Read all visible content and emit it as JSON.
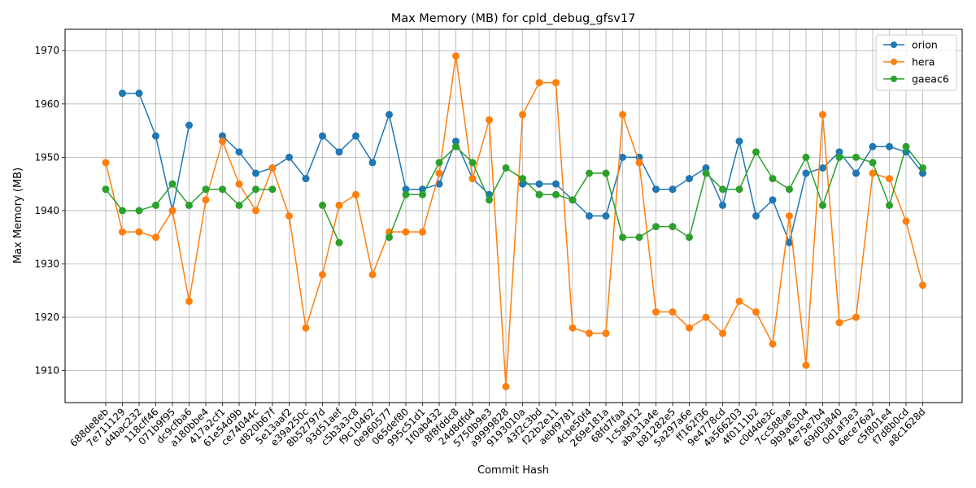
{
  "chart_data": {
    "type": "line",
    "title": "Max Memory (MB) for cpld_debug_gfsv17",
    "xlabel": "Commit Hash",
    "ylabel": "Max Memory (MB)",
    "ylim": [
      1904,
      1974
    ],
    "yticks": [
      1910,
      1920,
      1930,
      1940,
      1950,
      1960,
      1970
    ],
    "grid": true,
    "legend_position": "top-right",
    "categories": [
      "688de8eb",
      "7e711129",
      "d4bac232",
      "118cff46",
      "071b9f95",
      "dc9cfba6",
      "a180bbe4",
      "417a2cf1",
      "61e54d9b",
      "ce74044c",
      "d820b67f",
      "5e13aaf2",
      "e39a250c",
      "8b52797d",
      "93d51aef",
      "c5b3a3c8",
      "f9c10462",
      "0e960577",
      "065def80",
      "995c51d1",
      "1f0ab432",
      "8f8fddc8",
      "24d8dfd4",
      "5750b9e3",
      "a9999828",
      "9193010a",
      "43f2c3bd",
      "f22b2e11",
      "aebf9781",
      "4cbe50f4",
      "269e181a",
      "68fd7faa",
      "1c5a9f12",
      "aba31a4e",
      "b81282e5",
      "5a297a6e",
      "ff162f36",
      "9e4778cd",
      "4a566203",
      "4f0111b2",
      "c0d4de3c",
      "7cc588ae",
      "9b9a6304",
      "4e75e7b4",
      "69d03840",
      "0d1af3e3",
      "6ece76a2",
      "c5f801e4",
      "f7d8b0cd",
      "a8c1628d"
    ],
    "series": [
      {
        "name": "orion",
        "color": "#1f77b4",
        "values": [
          null,
          1962,
          1962,
          1954,
          1940,
          1956,
          null,
          1954,
          1951,
          1947,
          1948,
          1950,
          1946,
          1954,
          1951,
          1954,
          1949,
          1958,
          1944,
          1944,
          1945,
          1953,
          1946,
          1943,
          null,
          1945,
          1945,
          1945,
          1942,
          1939,
          1939,
          1950,
          1950,
          1944,
          1944,
          1946,
          1948,
          1941,
          1953,
          1939,
          1942,
          1934,
          1947,
          1948,
          1951,
          1947,
          1952,
          1952,
          1951,
          1947
        ]
      },
      {
        "name": "hera",
        "color": "#ff7f0e",
        "values": [
          1949,
          1936,
          1936,
          1935,
          1940,
          1923,
          1942,
          1953,
          1945,
          1940,
          1948,
          1939,
          1918,
          1928,
          1941,
          1943,
          1928,
          1936,
          1936,
          1936,
          1947,
          1969,
          1946,
          1957,
          1907,
          1958,
          1964,
          1964,
          1918,
          1917,
          1917,
          1958,
          1949,
          1921,
          1921,
          1918,
          1920,
          1917,
          1923,
          1921,
          1915,
          1939,
          1911,
          1958,
          1919,
          1920,
          1947,
          1946,
          1938,
          1926
        ]
      },
      {
        "name": "gaeac6",
        "color": "#2ca02c",
        "values": [
          1944,
          1940,
          1940,
          1941,
          1945,
          1941,
          1944,
          1944,
          1941,
          1944,
          1944,
          null,
          null,
          1941,
          1934,
          null,
          null,
          1935,
          1943,
          1943,
          1949,
          1952,
          1949,
          1942,
          1948,
          1946,
          1943,
          1943,
          1942,
          1947,
          1947,
          1935,
          1935,
          1937,
          1937,
          1935,
          1947,
          1944,
          1944,
          1951,
          1946,
          1944,
          1950,
          1941,
          1950,
          1950,
          1949,
          1941,
          1952,
          1948
        ]
      }
    ]
  }
}
